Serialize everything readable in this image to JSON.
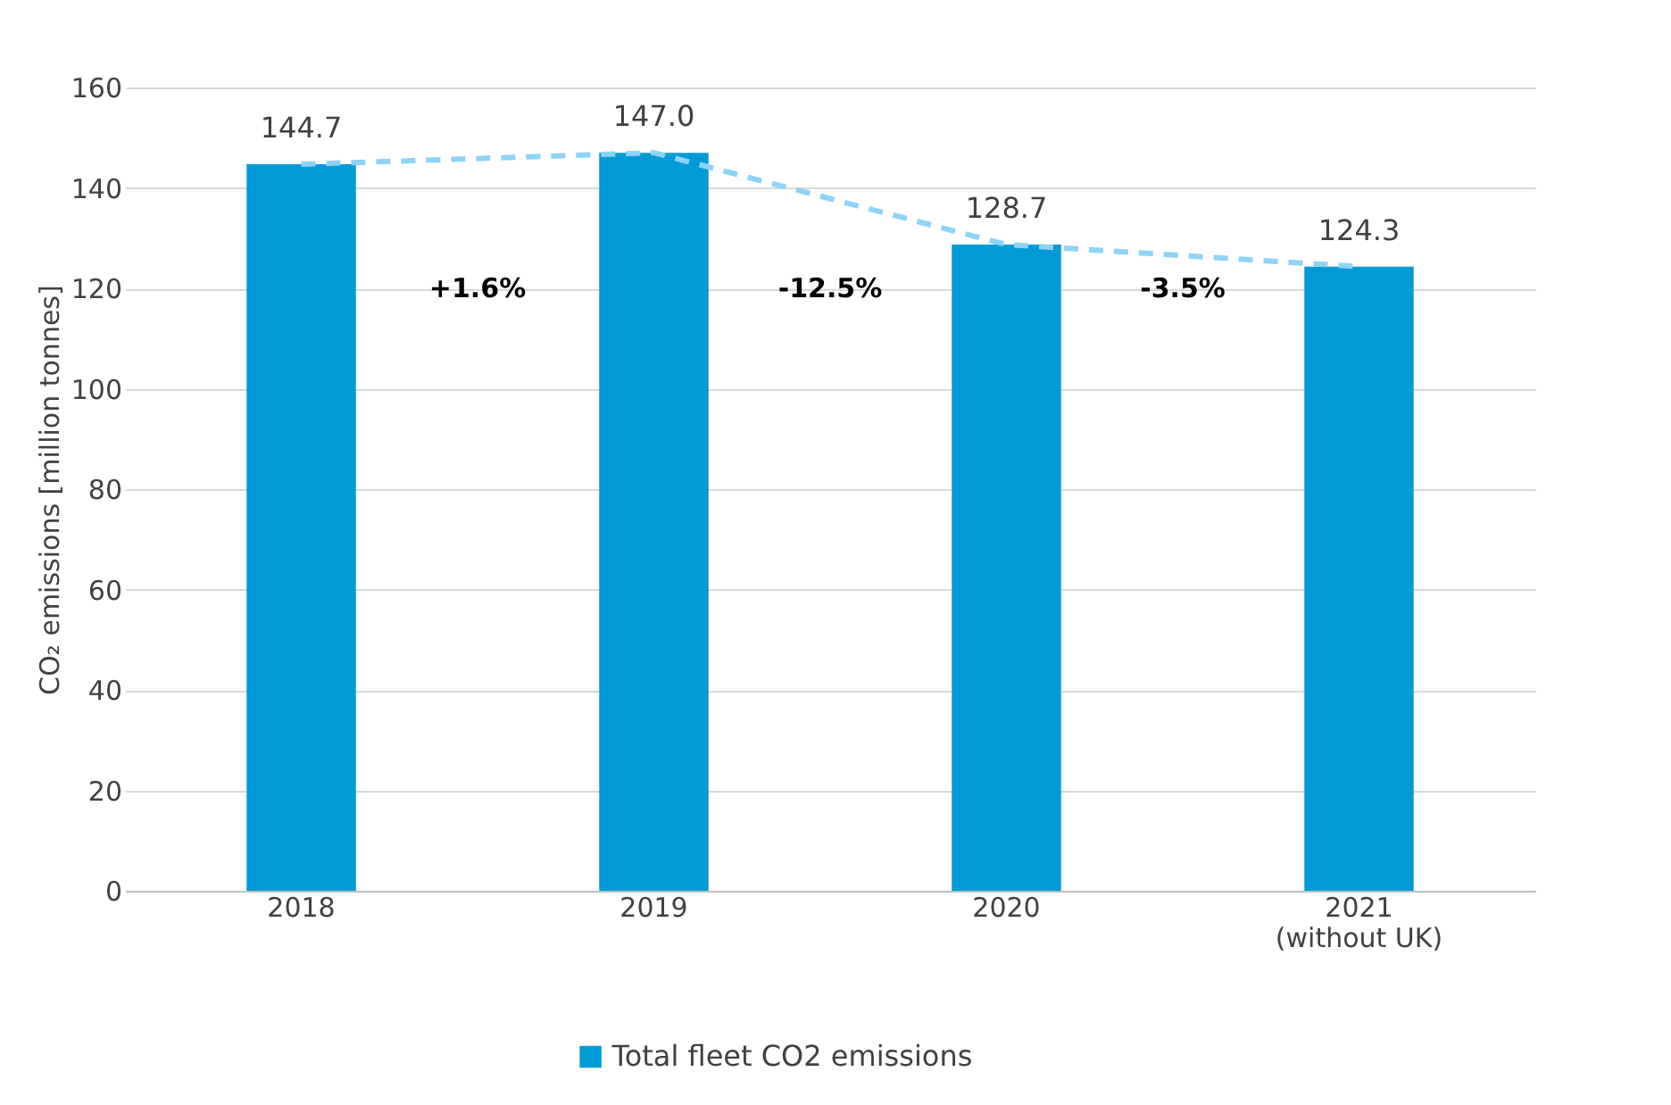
{
  "chart_data": {
    "type": "bar",
    "ylabel": "CO₂ emissions [million tonnes]",
    "categories": [
      "2018",
      "2019",
      "2020",
      "2021\n(without UK)"
    ],
    "series": [
      {
        "name": "Total fleet CO2 emissions",
        "color": "#009ad6",
        "values": [
          144.7,
          147.0,
          128.7,
          124.3
        ],
        "value_labels": [
          "144.7",
          "147.0",
          "128.7",
          "124.3"
        ]
      },
      {
        "type": "line",
        "color": "#8dd3f7",
        "line_style": "dashed",
        "values": [
          144.7,
          147.0,
          128.7,
          124.3
        ]
      }
    ],
    "annotations": [
      "+1.6%",
      "-12.5%",
      "-3.5%"
    ],
    "ylim": [
      0,
      160
    ],
    "yticks": [
      0,
      20,
      40,
      60,
      80,
      100,
      120,
      140,
      160
    ],
    "grid": "y",
    "legend": "bottom"
  }
}
